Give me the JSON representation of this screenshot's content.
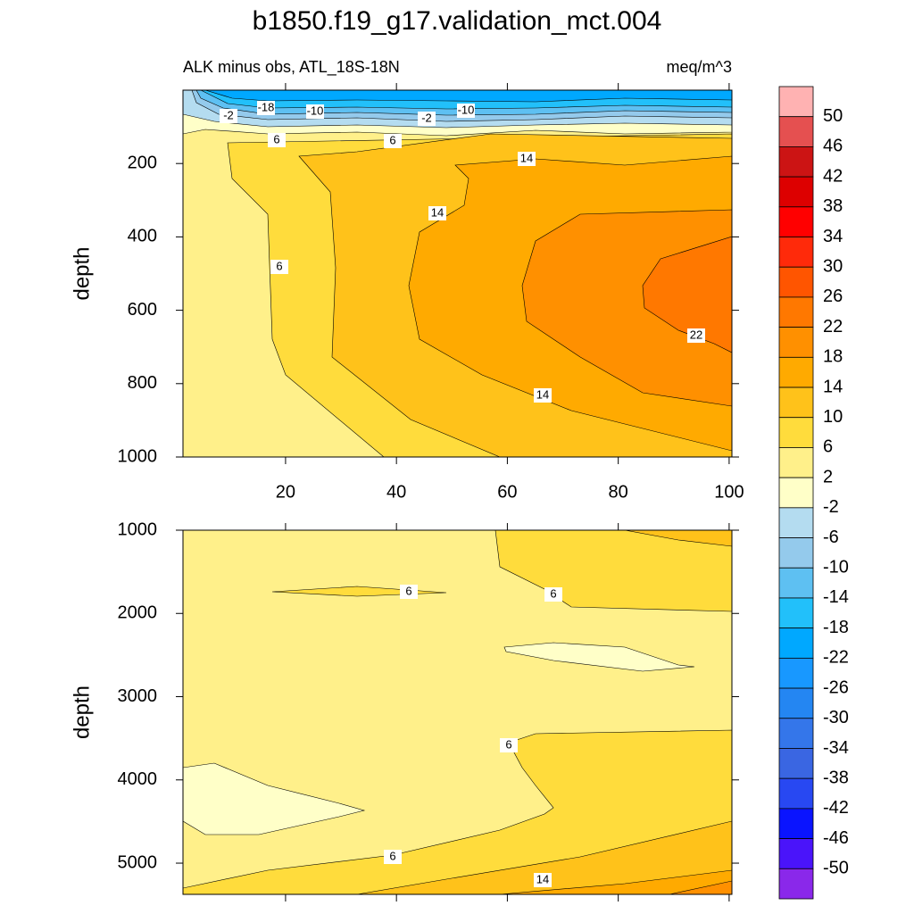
{
  "chart_data": {
    "type": "contour",
    "title": "b1850.f19_g17.validation_mct.004",
    "subtitle_left": "ALK minus obs, ATL_18S-18N",
    "subtitle_right": "meq/m^3",
    "panels": [
      {
        "ylabel": "depth",
        "ylim": [
          0,
          1000
        ],
        "yticks": [
          200,
          400,
          600,
          800,
          1000
        ],
        "xlim": [
          1.5,
          100.5
        ],
        "xticks": [
          20,
          40,
          60,
          80,
          100
        ],
        "xtick_labels_shown": true,
        "contour_labels": [
          -18,
          -10,
          -2,
          -2,
          -10,
          6,
          6,
          14,
          14,
          6,
          22,
          14
        ]
      },
      {
        "ylabel": "depth",
        "ylim": [
          1000,
          5375
        ],
        "yticks": [
          1000,
          2000,
          3000,
          4000,
          5000
        ],
        "xlim": [
          1.5,
          100.5
        ],
        "xticks": [
          20,
          40,
          60,
          80,
          100
        ],
        "xtick_labels_shown": false,
        "contour_labels": [
          6,
          6,
          6,
          6,
          14
        ]
      }
    ],
    "colorbar": {
      "levels": [
        50,
        46,
        42,
        38,
        34,
        30,
        26,
        22,
        18,
        14,
        10,
        6,
        2,
        -2,
        -6,
        -10,
        -14,
        -18,
        -22,
        -26,
        -30,
        -34,
        -38,
        -42,
        -46,
        -50
      ],
      "colors": [
        "#ffb2b2",
        "#e55050",
        "#cc1414",
        "#dd0000",
        "#ff0000",
        "#ff2a0a",
        "#ff5500",
        "#ff7800",
        "#ff9000",
        "#ffaa00",
        "#ffc21a",
        "#ffdc3c",
        "#fff08a",
        "#ffffc8",
        "#b4dcf0",
        "#94caec",
        "#5ec0f2",
        "#22c0fa",
        "#00a8ff",
        "#1898ff",
        "#2486f2",
        "#3476ea",
        "#3a66e2",
        "#2848f2",
        "#0a14ff",
        "#4a14fa",
        "#8a28ea"
      ]
    }
  }
}
